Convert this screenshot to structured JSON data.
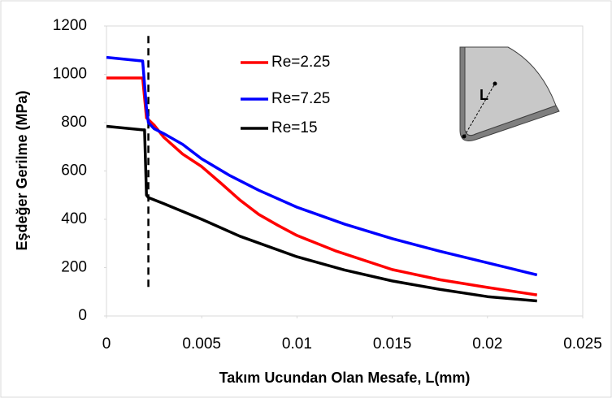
{
  "chart_data": {
    "type": "line",
    "x_label": "Takım Ucundan Olan Mesafe, L(mm)",
    "y_label": "Eşdeğer Gerilme (MPa)",
    "xlim": [
      0,
      0.025
    ],
    "xticks": [
      0,
      0.005,
      0.01,
      0.015,
      0.02,
      0.025
    ],
    "ylim": [
      0,
      1200
    ],
    "yticks": [
      0,
      200,
      400,
      600,
      800,
      1000,
      1200
    ],
    "grid": false,
    "legend": "upper center",
    "vline": {
      "x": 0.0022,
      "ymin": 120,
      "ymax": 1170
    },
    "inset_label": "L",
    "series": [
      {
        "name": "Re=2.25",
        "color": "#ff0000",
        "x": [
          0,
          0.0019,
          0.0021,
          0.0025,
          0.003,
          0.004,
          0.005,
          0.006,
          0.007,
          0.008,
          0.009,
          0.01,
          0.012,
          0.015,
          0.0175,
          0.02,
          0.0226
        ],
        "values": [
          985,
          985,
          820,
          790,
          740,
          670,
          618,
          550,
          480,
          420,
          375,
          333,
          270,
          192,
          150,
          118,
          87
        ]
      },
      {
        "name": "Re=7.25",
        "color": "#0000ff",
        "x": [
          0,
          0.0019,
          0.0021,
          0.0022,
          0.0025,
          0.003,
          0.004,
          0.005,
          0.0065,
          0.008,
          0.01,
          0.0125,
          0.015,
          0.0175,
          0.02,
          0.0226
        ],
        "values": [
          1070,
          1055,
          860,
          800,
          775,
          755,
          710,
          650,
          580,
          520,
          450,
          380,
          320,
          268,
          220,
          170
        ]
      },
      {
        "name": "Re=15",
        "color": "#000000",
        "x": [
          0,
          0.0019,
          0.002,
          0.0021,
          0.0022,
          0.003,
          0.005,
          0.007,
          0.01,
          0.0125,
          0.015,
          0.0175,
          0.02,
          0.0226
        ],
        "values": [
          785,
          770,
          770,
          500,
          490,
          465,
          400,
          330,
          245,
          190,
          145,
          110,
          80,
          62
        ]
      }
    ]
  }
}
